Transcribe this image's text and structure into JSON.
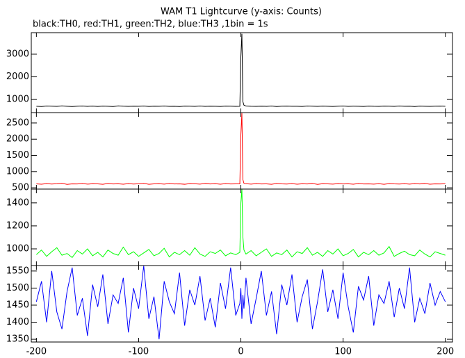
{
  "chart_data": {
    "type": "line",
    "title": "WAM T1 Lightcurve (y-axis: Counts)",
    "subtitle": "black:TH0, red:TH1, green:TH2, blue:TH3 ,1bin = 1s",
    "x": [
      -200,
      -195,
      -190,
      -185,
      -180,
      -175,
      -170,
      -165,
      -160,
      -155,
      -150,
      -145,
      -140,
      -135,
      -130,
      -125,
      -120,
      -115,
      -110,
      -105,
      -100,
      -95,
      -90,
      -85,
      -80,
      -75,
      -70,
      -65,
      -60,
      -55,
      -50,
      -45,
      -40,
      -35,
      -30,
      -25,
      -20,
      -15,
      -10,
      -5,
      -1,
      0,
      1,
      2,
      3,
      5,
      10,
      15,
      20,
      25,
      30,
      35,
      40,
      45,
      50,
      55,
      60,
      65,
      70,
      75,
      80,
      85,
      90,
      95,
      100,
      105,
      110,
      115,
      120,
      125,
      130,
      135,
      140,
      145,
      150,
      155,
      160,
      165,
      170,
      175,
      180,
      185,
      190,
      195,
      200
    ],
    "xlim": [
      -205,
      207
    ],
    "xticks": [
      -200,
      -100,
      0,
      100,
      200
    ],
    "panels": [
      {
        "color": "#000000",
        "ylim": [
          420,
          3950
        ],
        "yticks": [
          1000,
          2000,
          3000
        ],
        "values": [
          700,
          690,
          710,
          705,
          695,
          715,
          700,
          688,
          702,
          712,
          698,
          706,
          694,
          708,
          700,
          690,
          715,
          702,
          696,
          705,
          699,
          710,
          692,
          704,
          700,
          713,
          697,
          701,
          689,
          707,
          703,
          695,
          711,
          698,
          704,
          700,
          693,
          709,
          702,
          697,
          700,
          2900,
          3900,
          900,
          750,
          710,
          700,
          695,
          705,
          698,
          712,
          690,
          703,
          707,
          699,
          701,
          694,
          710,
          702,
          696,
          708,
          700,
          691,
          704,
          713,
          697,
          705,
          700,
          693,
          709,
          701,
          698,
          706,
          702,
          695,
          711,
          699,
          704,
          690,
          707,
          700,
          696,
          703,
          709,
          700
        ]
      },
      {
        "color": "#ff0000",
        "ylim": [
          460,
          2820
        ],
        "yticks": [
          500,
          1000,
          1500,
          2000,
          2500
        ],
        "values": [
          620,
          610,
          630,
          615,
          625,
          640,
          605,
          622,
          618,
          632,
          612,
          627,
          620,
          608,
          635,
          619,
          624,
          611,
          629,
          616,
          623,
          638,
          607,
          621,
          626,
          613,
          631,
          617,
          622,
          609,
          628,
          624,
          614,
          633,
          619,
          625,
          610,
          630,
          618,
          622,
          620,
          2150,
          2800,
          750,
          640,
          625,
          612,
          630,
          618,
          622,
          608,
          635,
          620,
          615,
          628,
          611,
          624,
          619,
          633,
          606,
          626,
          621,
          614,
          629,
          617,
          624,
          610,
          632,
          619,
          622,
          613,
          627,
          608,
          630,
          621,
          616,
          625,
          612,
          628,
          619,
          633,
          610,
          622,
          617,
          625
        ]
      },
      {
        "color": "#00ff00",
        "ylim": [
          855,
          1520
        ],
        "yticks": [
          1000,
          1200,
          1400
        ],
        "values": [
          950,
          990,
          935,
          975,
          1010,
          945,
          960,
          925,
          985,
          955,
          1000,
          940,
          970,
          930,
          990,
          960,
          945,
          1015,
          950,
          975,
          935,
          965,
          995,
          940,
          960,
          1005,
          930,
          970,
          950,
          985,
          945,
          1010,
          955,
          935,
          975,
          960,
          990,
          940,
          965,
          950,
          970,
          1400,
          1520,
          1100,
          990,
          955,
          985,
          940,
          970,
          1000,
          935,
          965,
          950,
          990,
          930,
          975,
          960,
          1010,
          945,
          970,
          935,
          985,
          955,
          1000,
          940,
          960,
          995,
          930,
          970,
          950,
          985,
          945,
          965,
          1020,
          935,
          960,
          980,
          950,
          940,
          990,
          955,
          930,
          975,
          960,
          945
        ]
      },
      {
        "color": "#0000ff",
        "ylim": [
          1342,
          1566
        ],
        "yticks": [
          1350,
          1400,
          1450,
          1500,
          1550
        ],
        "values": [
          1460,
          1520,
          1400,
          1550,
          1430,
          1380,
          1490,
          1560,
          1420,
          1470,
          1360,
          1510,
          1445,
          1540,
          1395,
          1480,
          1455,
          1530,
          1370,
          1500,
          1440,
          1565,
          1410,
          1475,
          1350,
          1520,
          1460,
          1425,
          1545,
          1390,
          1495,
          1450,
          1535,
          1405,
          1470,
          1385,
          1515,
          1440,
          1560,
          1420,
          1455,
          1500,
          1410,
          1480,
          1440,
          1530,
          1395,
          1470,
          1550,
          1420,
          1490,
          1365,
          1510,
          1450,
          1540,
          1400,
          1475,
          1525,
          1380,
          1460,
          1555,
          1430,
          1495,
          1410,
          1545,
          1445,
          1370,
          1505,
          1465,
          1535,
          1390,
          1480,
          1455,
          1520,
          1415,
          1500,
          1440,
          1560,
          1400,
          1470,
          1425,
          1515,
          1450,
          1490,
          1460
        ]
      }
    ]
  }
}
